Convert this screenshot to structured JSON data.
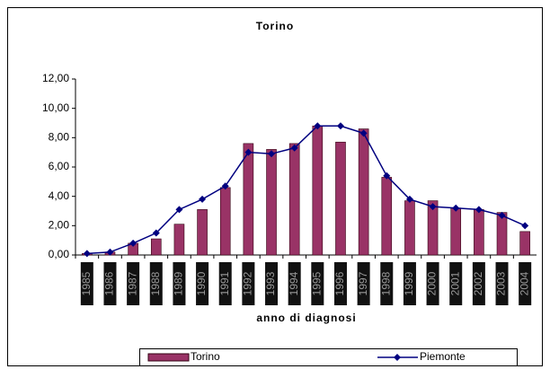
{
  "chart_data": {
    "type": "bar",
    "title": "Torino",
    "x_label": "anno di diagnosi",
    "categories": [
      "1985",
      "1986",
      "1987",
      "1988",
      "1989",
      "1990",
      "1991",
      "1992",
      "1993",
      "1994",
      "1995",
      "1996",
      "1997",
      "1998",
      "1999",
      "2000",
      "2001",
      "2002",
      "2003",
      "2004"
    ],
    "series": [
      {
        "name": "Torino",
        "type": "bar",
        "color": "#993366",
        "values": [
          0.1,
          0.2,
          0.8,
          1.1,
          2.1,
          3.1,
          4.6,
          7.6,
          7.2,
          7.6,
          8.8,
          7.7,
          8.6,
          5.3,
          3.7,
          3.7,
          3.2,
          3.1,
          2.9,
          1.6
        ]
      },
      {
        "name": "Piemonte",
        "type": "line",
        "color": "#000080",
        "values": [
          0.1,
          0.2,
          0.8,
          1.5,
          3.1,
          3.8,
          4.7,
          7.0,
          6.9,
          7.3,
          8.8,
          8.8,
          8.3,
          5.4,
          3.8,
          3.3,
          3.2,
          3.1,
          2.7,
          2.0
        ]
      }
    ],
    "ylim": [
      0,
      12
    ],
    "yticks": [
      {
        "value": 0,
        "label": "0,00"
      },
      {
        "value": 2,
        "label": "2,00"
      },
      {
        "value": 4,
        "label": "4,00"
      },
      {
        "value": 6,
        "label": "6,00"
      },
      {
        "value": 8,
        "label": "8,00"
      },
      {
        "value": 10,
        "label": "10,00"
      },
      {
        "value": 12,
        "label": "12,00"
      }
    ],
    "legend": "bottom"
  }
}
